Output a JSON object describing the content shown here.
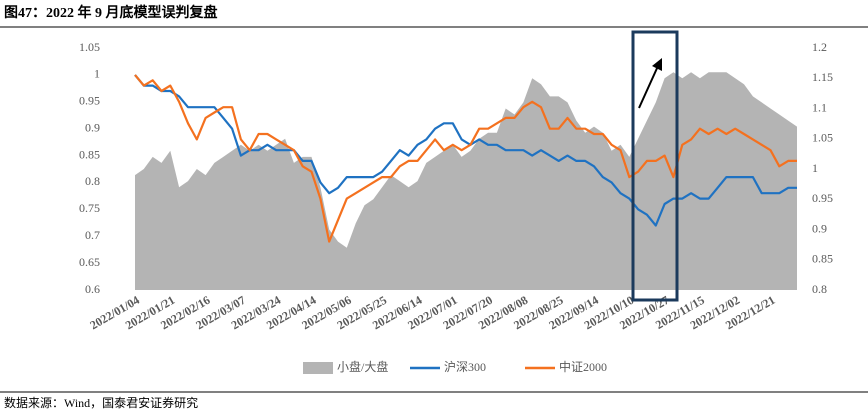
{
  "chart_data": {
    "type": "line",
    "title": "图47：2022 年 9 月底模型误判复盘",
    "source": "数据来源：Wind，国泰君安证券研究",
    "categories": [
      "2022/01/04",
      null,
      null,
      null,
      "2022/01/21",
      null,
      null,
      null,
      "2022/02/16",
      null,
      null,
      null,
      "2022/03/07",
      null,
      null,
      null,
      "2022/03/24",
      null,
      null,
      null,
      "2022/04/14",
      null,
      null,
      null,
      "2022/05/06",
      null,
      null,
      null,
      "2022/05/25",
      null,
      null,
      null,
      "2022/06/14",
      null,
      null,
      null,
      "2022/07/01",
      null,
      null,
      null,
      "2022/07/20",
      null,
      null,
      null,
      "2022/08/08",
      null,
      null,
      null,
      "2022/08/25",
      null,
      null,
      null,
      "2022/09/14",
      null,
      null,
      null,
      "2022/10/10",
      null,
      null,
      null,
      "2022/10/27",
      null,
      null,
      null,
      "2022/11/15",
      null,
      null,
      null,
      "2022/12/02",
      null,
      null,
      null,
      "2022/12/21",
      null,
      null,
      null
    ],
    "series": [
      {
        "name": "小盘/大盘",
        "type": "area",
        "axis": "y2",
        "color": "#b4b4b4",
        "values": [
          0.99,
          1.0,
          1.02,
          1.01,
          1.03,
          0.97,
          0.98,
          1.0,
          0.99,
          1.01,
          1.02,
          1.03,
          1.04,
          1.03,
          1.04,
          1.03,
          1.04,
          1.05,
          1.01,
          1.02,
          1.02,
          0.97,
          0.9,
          0.88,
          0.87,
          0.91,
          0.94,
          0.95,
          0.97,
          0.99,
          0.98,
          0.97,
          0.98,
          1.01,
          1.02,
          1.03,
          1.04,
          1.02,
          1.03,
          1.05,
          1.06,
          1.06,
          1.1,
          1.09,
          1.11,
          1.15,
          1.14,
          1.12,
          1.12,
          1.11,
          1.08,
          1.06,
          1.07,
          1.06,
          1.03,
          1.04,
          1.02,
          1.05,
          1.08,
          1.11,
          1.15,
          1.16,
          1.15,
          1.16,
          1.15,
          1.16,
          1.16,
          1.16,
          1.15,
          1.14,
          1.12,
          1.11,
          1.1,
          1.09,
          1.08,
          1.07
        ]
      },
      {
        "name": "沪深300",
        "type": "line",
        "color": "#1f72c2",
        "values": [
          1.0,
          0.98,
          0.98,
          0.97,
          0.97,
          0.96,
          0.94,
          0.94,
          0.94,
          0.94,
          0.92,
          0.9,
          0.85,
          0.86,
          0.86,
          0.87,
          0.86,
          0.86,
          0.86,
          0.84,
          0.84,
          0.8,
          0.78,
          0.79,
          0.81,
          0.81,
          0.81,
          0.81,
          0.82,
          0.84,
          0.86,
          0.85,
          0.87,
          0.88,
          0.9,
          0.91,
          0.91,
          0.88,
          0.87,
          0.88,
          0.87,
          0.87,
          0.86,
          0.86,
          0.86,
          0.85,
          0.86,
          0.85,
          0.84,
          0.85,
          0.84,
          0.84,
          0.83,
          0.81,
          0.8,
          0.78,
          0.77,
          0.75,
          0.74,
          0.72,
          0.76,
          0.77,
          0.77,
          0.78,
          0.77,
          0.77,
          0.79,
          0.81,
          0.81,
          0.81,
          0.81,
          0.78,
          0.78,
          0.78,
          0.79,
          0.79
        ]
      },
      {
        "name": "中证2000",
        "type": "line",
        "color": "#f4711f",
        "values": [
          1.0,
          0.98,
          0.99,
          0.97,
          0.98,
          0.95,
          0.91,
          0.88,
          0.92,
          0.93,
          0.94,
          0.94,
          0.88,
          0.86,
          0.89,
          0.89,
          0.88,
          0.87,
          0.86,
          0.83,
          0.82,
          0.77,
          0.69,
          0.73,
          0.77,
          0.78,
          0.79,
          0.8,
          0.81,
          0.81,
          0.83,
          0.84,
          0.84,
          0.86,
          0.88,
          0.86,
          0.87,
          0.86,
          0.87,
          0.9,
          0.9,
          0.91,
          0.92,
          0.92,
          0.94,
          0.95,
          0.94,
          0.9,
          0.9,
          0.92,
          0.9,
          0.9,
          0.89,
          0.89,
          0.87,
          0.86,
          0.81,
          0.82,
          0.84,
          0.84,
          0.85,
          0.81,
          0.87,
          0.88,
          0.9,
          0.89,
          0.9,
          0.89,
          0.9,
          0.89,
          0.88,
          0.87,
          0.86,
          0.83,
          0.84,
          0.84
        ]
      }
    ],
    "ylim": [
      0.6,
      1.05
    ],
    "yticks": [
      0.6,
      0.65,
      0.7,
      0.75,
      0.8,
      0.85,
      0.9,
      0.95,
      1,
      1.05
    ],
    "y2lim": [
      0.8,
      1.2
    ],
    "y2ticks": [
      0.8,
      0.85,
      0.9,
      0.95,
      1,
      1.05,
      1.1,
      1.15,
      1.2
    ],
    "grid": false
  }
}
